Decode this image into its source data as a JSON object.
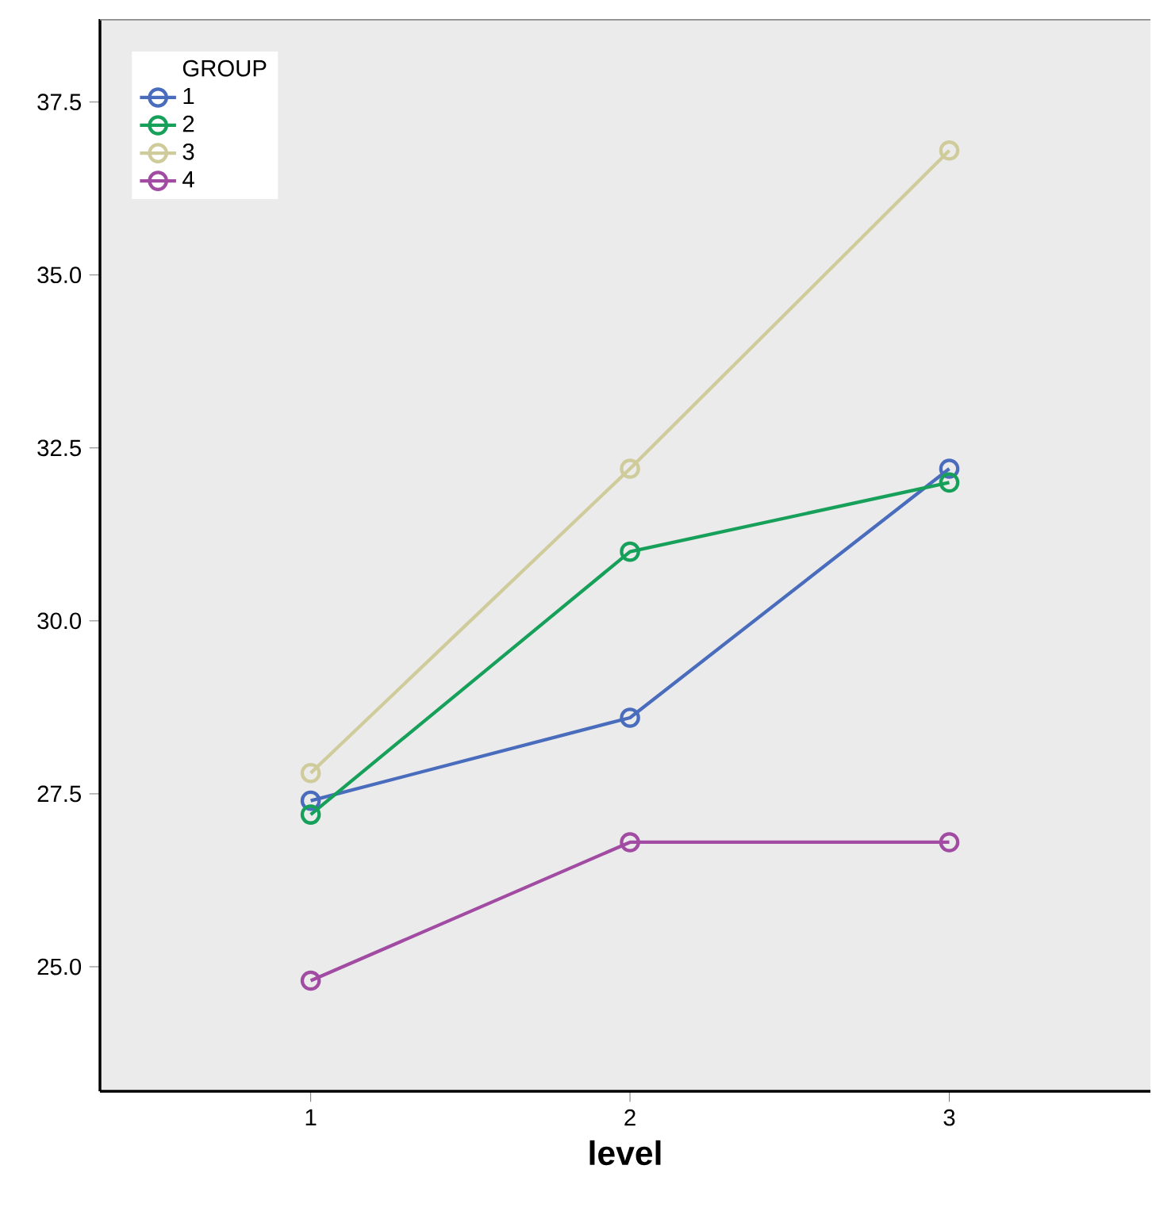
{
  "chart_data": {
    "type": "line",
    "xlabel": "level",
    "legend_title": "GROUP",
    "categories": [
      "1",
      "2",
      "3"
    ],
    "series": [
      {
        "name": "1",
        "color": "#4a6cbd",
        "values": [
          27.4,
          28.6,
          32.2
        ]
      },
      {
        "name": "2",
        "color": "#16a05a",
        "values": [
          27.2,
          31.0,
          32.0
        ]
      },
      {
        "name": "3",
        "color": "#cfcb9a",
        "values": [
          27.8,
          32.2,
          36.8
        ]
      },
      {
        "name": "4",
        "color": "#a14ba2",
        "values": [
          24.8,
          26.8,
          26.8
        ]
      }
    ],
    "ylim": [
      23.2,
      38.7
    ],
    "yticks": [
      {
        "value": 25,
        "label": "25.0"
      },
      {
        "value": 27.5,
        "label": "27.5"
      },
      {
        "value": 30,
        "label": "30.0"
      },
      {
        "value": 32.5,
        "label": "32.5"
      },
      {
        "value": 35,
        "label": "35.0"
      },
      {
        "value": 37.5,
        "label": "37.5"
      }
    ],
    "legend": "top left",
    "marker": "circle",
    "line_style": "solid",
    "grid": false
  }
}
